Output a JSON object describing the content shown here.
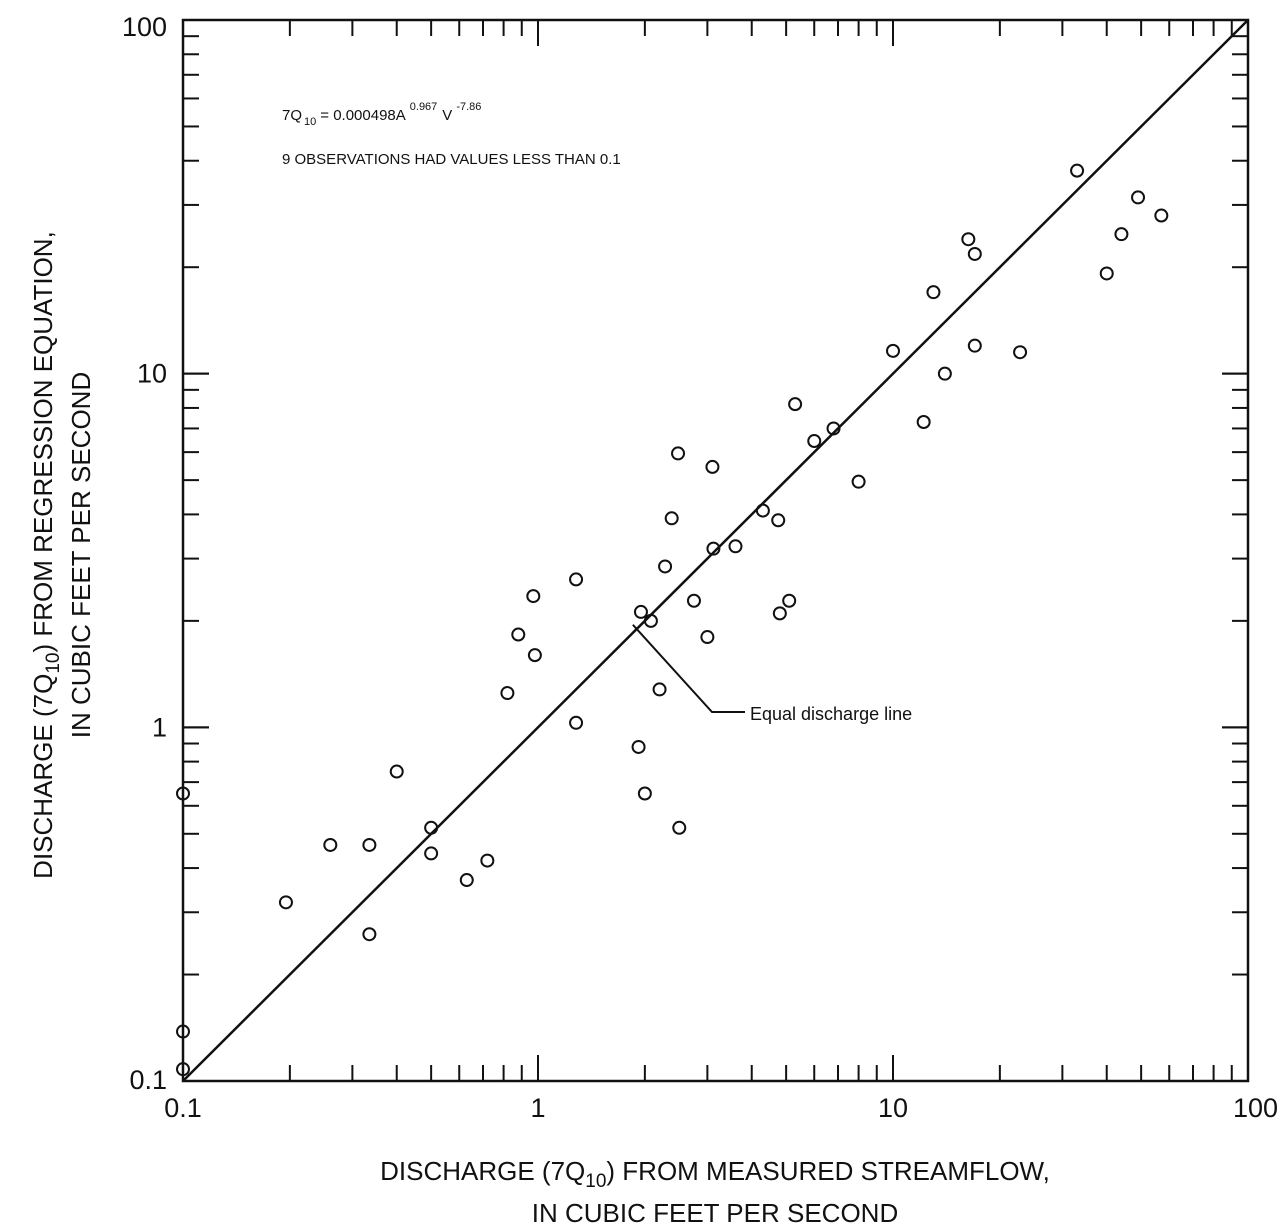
{
  "chart_data": {
    "type": "scatter",
    "xscale": "log",
    "yscale": "log",
    "xlim": [
      0.1,
      100
    ],
    "ylim": [
      0.1,
      100
    ],
    "xticks": [
      "0.1",
      "1",
      "10",
      "100"
    ],
    "yticks": [
      "0.1",
      "1",
      "10",
      "100"
    ],
    "xlabel": {
      "line1_pre": "DISCHARGE (7Q",
      "line1_sub": "10",
      "line1_post": ") FROM MEASURED STREAMFLOW,",
      "line2": "IN CUBIC FEET PER SECOND"
    },
    "ylabel": {
      "line1_pre": "DISCHARGE (7Q",
      "line1_sub": "10",
      "line1_post": ") FROM REGRESSION EQUATION,",
      "line2": "IN CUBIC FEET PER SECOND"
    },
    "equation": {
      "lhs": "7Q",
      "lhs_sub": "10",
      "mid": "= 0.000498A",
      "exp_a": "0.967",
      "v": "V",
      "exp_v": "-7.86"
    },
    "note": "9 OBSERVATIONS HAD VALUES LESS THAN 0.1",
    "reference_line": {
      "label": "Equal discharge line",
      "from": [
        0.1,
        0.1
      ],
      "to": [
        100,
        100
      ],
      "label_anchor": [
        1.85,
        1.95
      ]
    },
    "grid": false,
    "points": [
      {
        "x": 0.1,
        "y": 0.65
      },
      {
        "x": 0.1,
        "y": 0.138
      },
      {
        "x": 0.1,
        "y": 0.108
      },
      {
        "x": 0.195,
        "y": 0.32
      },
      {
        "x": 0.26,
        "y": 0.465
      },
      {
        "x": 0.335,
        "y": 0.465
      },
      {
        "x": 0.335,
        "y": 0.26
      },
      {
        "x": 0.4,
        "y": 0.75
      },
      {
        "x": 0.5,
        "y": 0.52
      },
      {
        "x": 0.5,
        "y": 0.44
      },
      {
        "x": 0.63,
        "y": 0.37
      },
      {
        "x": 0.72,
        "y": 0.42
      },
      {
        "x": 0.82,
        "y": 1.25
      },
      {
        "x": 0.88,
        "y": 1.83
      },
      {
        "x": 0.97,
        "y": 2.35
      },
      {
        "x": 0.98,
        "y": 1.6
      },
      {
        "x": 1.28,
        "y": 2.62
      },
      {
        "x": 1.28,
        "y": 1.03
      },
      {
        "x": 1.92,
        "y": 0.88
      },
      {
        "x": 1.95,
        "y": 2.12
      },
      {
        "x": 2.0,
        "y": 0.65
      },
      {
        "x": 2.08,
        "y": 2.0
      },
      {
        "x": 2.2,
        "y": 1.28
      },
      {
        "x": 2.28,
        "y": 2.85
      },
      {
        "x": 2.38,
        "y": 3.9
      },
      {
        "x": 2.48,
        "y": 5.95
      },
      {
        "x": 2.5,
        "y": 0.52
      },
      {
        "x": 2.75,
        "y": 2.28
      },
      {
        "x": 3.0,
        "y": 1.8
      },
      {
        "x": 3.1,
        "y": 5.45
      },
      {
        "x": 3.12,
        "y": 3.2
      },
      {
        "x": 3.6,
        "y": 3.25
      },
      {
        "x": 4.3,
        "y": 4.1
      },
      {
        "x": 4.75,
        "y": 3.85
      },
      {
        "x": 4.8,
        "y": 2.1
      },
      {
        "x": 5.1,
        "y": 2.28
      },
      {
        "x": 5.3,
        "y": 8.2
      },
      {
        "x": 6.0,
        "y": 6.45
      },
      {
        "x": 6.8,
        "y": 7.0
      },
      {
        "x": 8.0,
        "y": 4.95
      },
      {
        "x": 10.0,
        "y": 11.6
      },
      {
        "x": 12.2,
        "y": 7.3
      },
      {
        "x": 13.0,
        "y": 17.0
      },
      {
        "x": 14.0,
        "y": 10.0
      },
      {
        "x": 16.3,
        "y": 24.0
      },
      {
        "x": 17.0,
        "y": 21.8
      },
      {
        "x": 17.0,
        "y": 12.0
      },
      {
        "x": 22.8,
        "y": 11.5
      },
      {
        "x": 33.0,
        "y": 37.5
      },
      {
        "x": 40.0,
        "y": 19.2
      },
      {
        "x": 44.0,
        "y": 24.8
      },
      {
        "x": 49.0,
        "y": 31.5
      },
      {
        "x": 57.0,
        "y": 28.0
      }
    ]
  }
}
